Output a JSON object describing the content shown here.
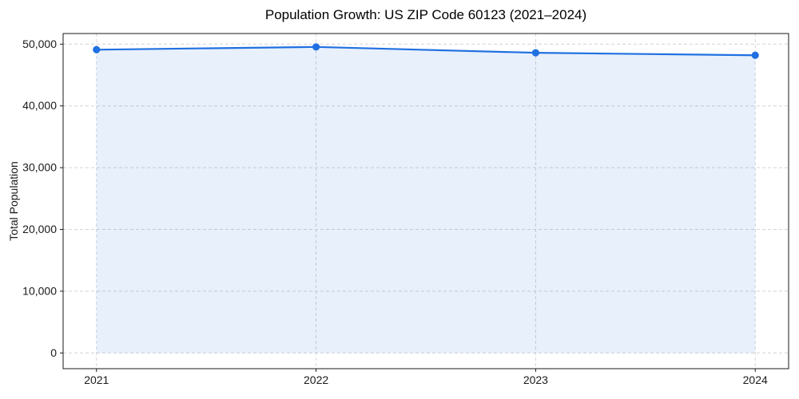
{
  "chart_data": {
    "type": "area",
    "title": "Population Growth: US ZIP Code 60123 (2021–2024)",
    "ylabel": "Total Population",
    "xlabel": "",
    "categories": [
      "2021",
      "2022",
      "2023",
      "2024"
    ],
    "values": [
      49100,
      49550,
      48600,
      48200
    ],
    "yticks": [
      0,
      10000,
      20000,
      30000,
      40000,
      50000
    ],
    "ytick_labels": [
      "0",
      "10,000",
      "20,000",
      "30,000",
      "40,000",
      "50,000"
    ],
    "ylim": [
      -2545,
      51720
    ],
    "x_margin_frac": 0.046,
    "grid": true,
    "grid_style": "dashed",
    "legend": "none",
    "line_color": "#2070e0",
    "fill_opacity": 0.1,
    "marker": "circle",
    "grid_color": "#d4d4d4",
    "axis_color": "#1a1a1a",
    "text_color": "#1a1a1a",
    "background_color": "#ffffff"
  }
}
